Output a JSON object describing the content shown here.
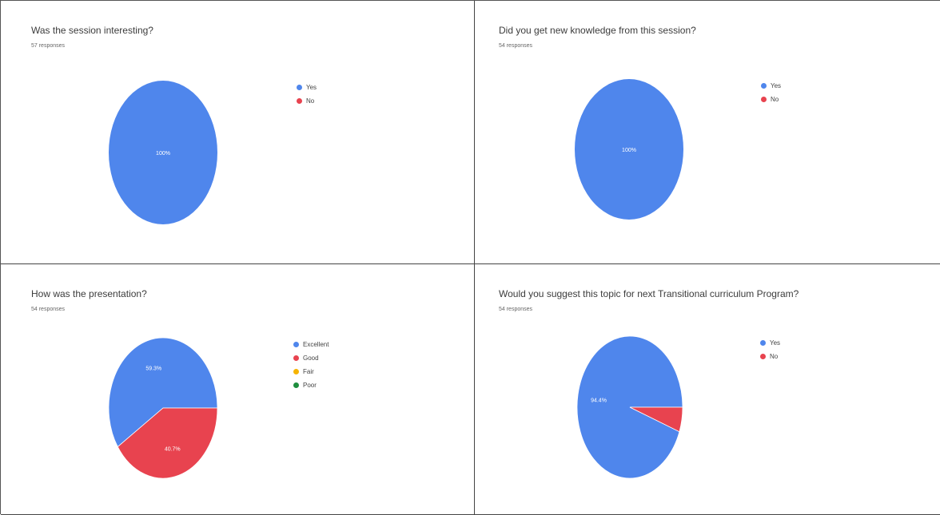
{
  "charts": [
    {
      "title": "Was the session interesting?",
      "subtitle": "57 responses",
      "chart_type": "pie",
      "legend": [
        {
          "label": "Yes",
          "color": "#4f86ec"
        },
        {
          "label": "No",
          "color": "#e8434f"
        }
      ],
      "slices": [
        {
          "label": "Yes",
          "value": 100,
          "color": "#4f86ec",
          "text": "100%"
        },
        {
          "label": "No",
          "value": 0,
          "color": "#e8434f",
          "text": ""
        }
      ]
    },
    {
      "title": "Did you get new knowledge from this session?",
      "subtitle": "54 responses",
      "chart_type": "pie",
      "legend": [
        {
          "label": "Yes",
          "color": "#4f86ec"
        },
        {
          "label": "No",
          "color": "#e8434f"
        }
      ],
      "slices": [
        {
          "label": "Yes",
          "value": 100,
          "color": "#4f86ec",
          "text": "100%"
        },
        {
          "label": "No",
          "value": 0,
          "color": "#e8434f",
          "text": ""
        }
      ]
    },
    {
      "title": "How was the presentation?",
      "subtitle": "54 responses",
      "chart_type": "pie",
      "legend": [
        {
          "label": "Excellent",
          "color": "#4f86ec"
        },
        {
          "label": "Good",
          "color": "#e8434f"
        },
        {
          "label": "Fair",
          "color": "#f6b400"
        },
        {
          "label": "Poor",
          "color": "#1e8e3e"
        }
      ],
      "slices": [
        {
          "label": "Excellent",
          "value": 59.3,
          "color": "#4f86ec",
          "text": "59.3%"
        },
        {
          "label": "Good",
          "value": 40.7,
          "color": "#e8434f",
          "text": "40.7%"
        }
      ]
    },
    {
      "title": "Would you suggest this topic for next Transitional curriculum Program?",
      "subtitle": "54 responses",
      "chart_type": "pie",
      "legend": [
        {
          "label": "Yes",
          "color": "#4f86ec"
        },
        {
          "label": "No",
          "color": "#e8434f"
        }
      ],
      "slices": [
        {
          "label": "Yes",
          "value": 94.4,
          "color": "#4f86ec",
          "text": "94.4%"
        },
        {
          "label": "No",
          "value": 5.6,
          "color": "#e8434f",
          "text": ""
        }
      ]
    }
  ],
  "chart_data": [
    {
      "type": "pie",
      "title": "Was the session interesting?",
      "subtitle": "57 responses",
      "categories": [
        "Yes",
        "No"
      ],
      "values": [
        100,
        0
      ],
      "legend_position": "right"
    },
    {
      "type": "pie",
      "title": "Did you get new knowledge from this session?",
      "subtitle": "54 responses",
      "categories": [
        "Yes",
        "No"
      ],
      "values": [
        100,
        0
      ],
      "legend_position": "right"
    },
    {
      "type": "pie",
      "title": "How was the presentation?",
      "subtitle": "54 responses",
      "categories": [
        "Excellent",
        "Good",
        "Fair",
        "Poor"
      ],
      "values": [
        59.3,
        40.7,
        0,
        0
      ],
      "legend_position": "right"
    },
    {
      "type": "pie",
      "title": "Would you suggest this topic for next Transitional curriculum Program?",
      "subtitle": "54 responses",
      "categories": [
        "Yes",
        "No"
      ],
      "values": [
        94.4,
        5.6
      ],
      "legend_position": "right"
    }
  ]
}
